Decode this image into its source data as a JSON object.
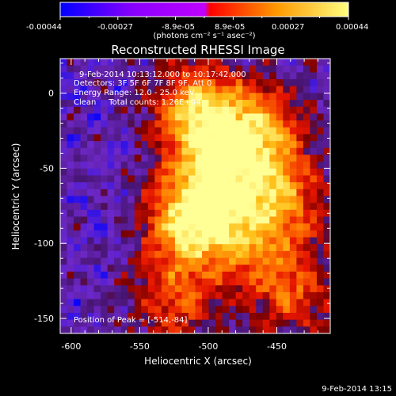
{
  "colorbar": {
    "ticks": [
      "-0.00044",
      "-0.00027",
      "-8.9e-05",
      "8.9e-05",
      "0.00027",
      "0.00044"
    ],
    "unit": "(photons cm⁻² s⁻¹ asec⁻²)",
    "colors": [
      "#0000ff",
      "#8800ff",
      "#c000ff",
      "#ff0000",
      "#ff9900",
      "#ffff80"
    ]
  },
  "chart_data": {
    "type": "heatmap",
    "title": "Reconstructed RHESSI Image",
    "xlabel": "Heliocentric X (arcsec)",
    "ylabel": "Heliocentric Y (arcsec)",
    "x_ticks": [
      -600,
      -550,
      -500,
      -450
    ],
    "y_ticks": [
      0,
      -50,
      -100,
      -150
    ],
    "xlim": [
      -608,
      -411
    ],
    "ylim": [
      -160,
      23
    ],
    "annotations": [
      "9-Feb-2014 10:13:12.000 to 10:17:42.000",
      "Detectors: 3F 5F 6F 7F 8F 9F, Att 0",
      "Energy Range: 12.0 - 25.0 keV",
      "Clean     Total counts: 1.26E+04"
    ],
    "peak_label": "Position of Peak = [-514,-84]",
    "peak": {
      "x": -514,
      "y": -84
    },
    "bright_regions": [
      {
        "x": -514,
        "y": -84,
        "v": 1.0
      },
      {
        "x": -508,
        "y": -12,
        "v": 0.85
      },
      {
        "x": -490,
        "y": -47,
        "v": 0.75
      },
      {
        "x": -462,
        "y": -25,
        "v": 0.7
      },
      {
        "x": -445,
        "y": -70,
        "v": 0.62
      },
      {
        "x": -475,
        "y": -95,
        "v": 0.55
      },
      {
        "x": -440,
        "y": -132,
        "v": 0.55
      },
      {
        "x": -525,
        "y": -138,
        "v": 0.5
      }
    ]
  },
  "footer": {
    "timestamp": "9-Feb-2014 13:15"
  }
}
